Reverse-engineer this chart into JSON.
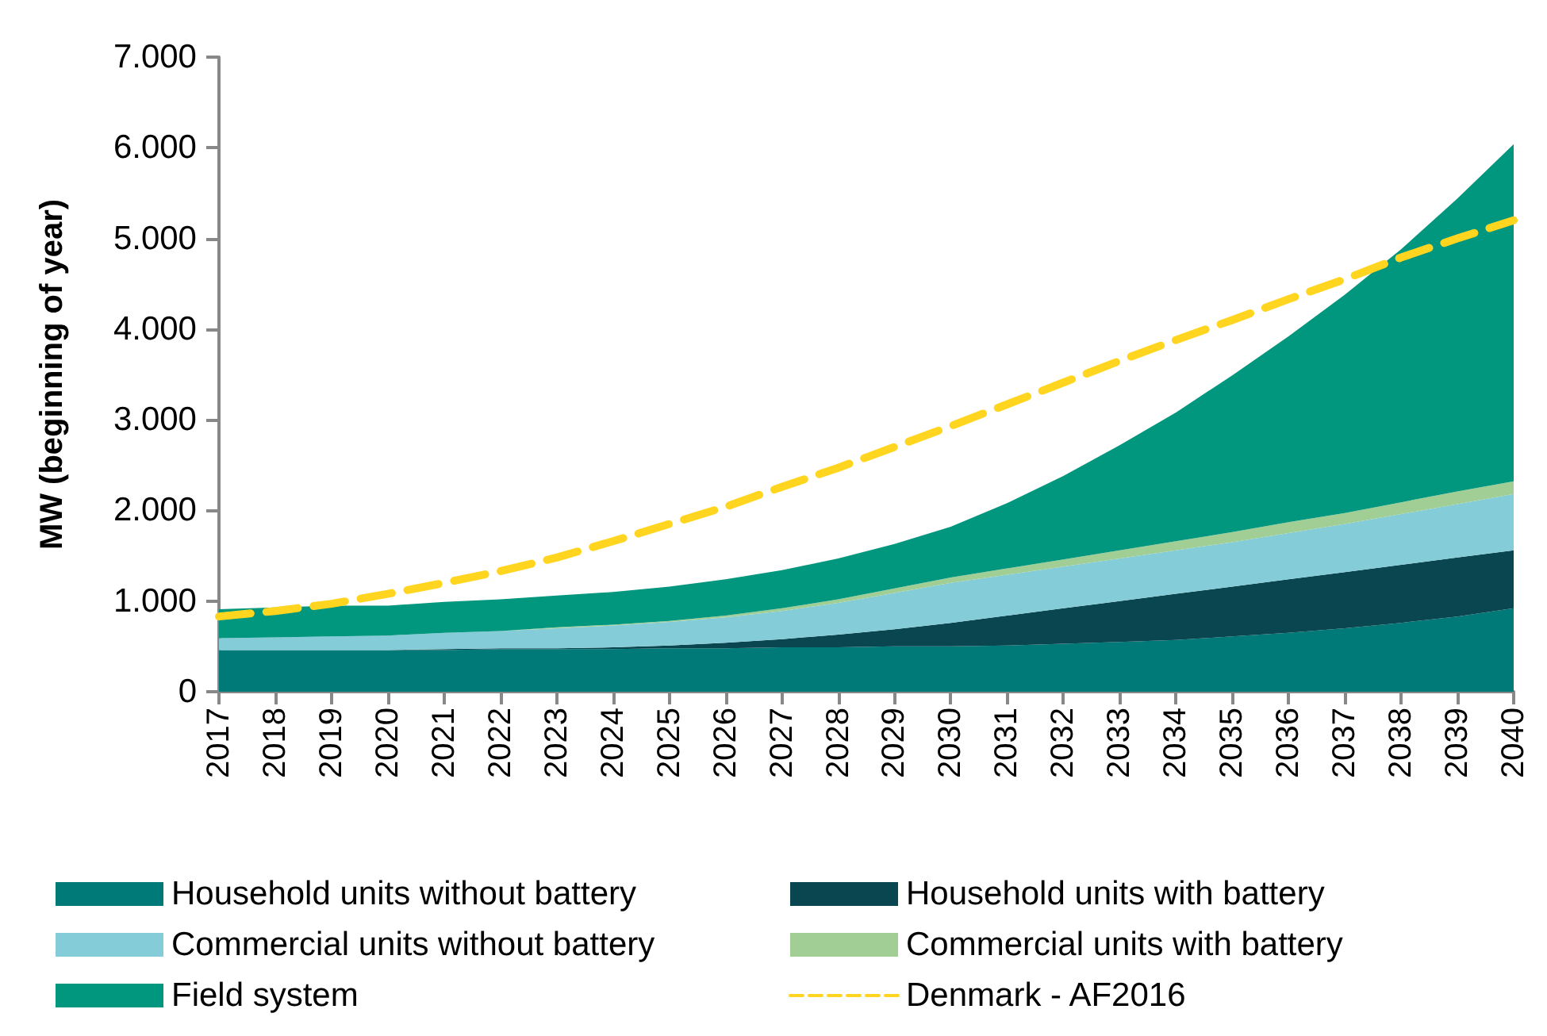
{
  "chart_data": {
    "type": "area",
    "stacked": true,
    "ylabel": "MW (beginning of year)",
    "categories": [
      "2017",
      "2018",
      "2019",
      "2020",
      "2021",
      "2022",
      "2023",
      "2024",
      "2025",
      "2026",
      "2027",
      "2028",
      "2029",
      "2030",
      "2031",
      "2032",
      "2033",
      "2034",
      "2035",
      "2036",
      "2037",
      "2038",
      "2039",
      "2040"
    ],
    "ylim": [
      0,
      7000
    ],
    "yticks": [
      0,
      {
        "value": 1000,
        "label": "1.000"
      },
      {
        "value": 2000,
        "label": "2.000"
      },
      {
        "value": 3000,
        "label": "3.000"
      },
      {
        "value": 4000,
        "label": "4.000"
      },
      {
        "value": 5000,
        "label": "5.000"
      },
      {
        "value": 6000,
        "label": "6.000"
      },
      {
        "value": 7000,
        "label": "7.000"
      }
    ],
    "grid": false,
    "legend": "bottom",
    "marker": "none",
    "series": [
      {
        "name": "Household units without battery",
        "color": "#007a78",
        "values": [
          460,
          460,
          460,
          460,
          460,
          470,
          470,
          470,
          480,
          480,
          490,
          490,
          500,
          500,
          510,
          530,
          550,
          570,
          610,
          650,
          700,
          760,
          830,
          920
        ]
      },
      {
        "name": "Household units with battery",
        "color": "#0a4650",
        "values": [
          0,
          0,
          0,
          0,
          10,
          10,
          10,
          20,
          30,
          60,
          90,
          140,
          190,
          260,
          330,
          390,
          450,
          510,
          550,
          590,
          620,
          640,
          650,
          640
        ]
      },
      {
        "name": "Commercial units without battery",
        "color": "#84ccd8",
        "values": [
          130,
          140,
          150,
          160,
          180,
          190,
          220,
          240,
          260,
          280,
          310,
          350,
          400,
          440,
          450,
          460,
          470,
          480,
          490,
          510,
          530,
          560,
          590,
          620
        ]
      },
      {
        "name": "Commercial units with battery",
        "color": "#a0ce94",
        "values": [
          0,
          0,
          0,
          0,
          0,
          0,
          10,
          10,
          10,
          20,
          30,
          40,
          50,
          60,
          70,
          80,
          90,
          100,
          110,
          120,
          120,
          130,
          140,
          140
        ]
      },
      {
        "name": "Field system",
        "color": "#00977e",
        "values": [
          320,
          330,
          340,
          330,
          340,
          350,
          350,
          360,
          380,
          400,
          420,
          450,
          490,
          560,
          720,
          920,
          1160,
          1420,
          1730,
          2050,
          2410,
          2790,
          3230,
          3720
        ]
      },
      {
        "name": "Denmark - AF2016",
        "type": "line",
        "line_style": "dashed",
        "color": "#ffd520",
        "values": [
          830,
          890,
          970,
          1080,
          1200,
          1330,
          1480,
          1660,
          1850,
          2040,
          2260,
          2470,
          2700,
          2930,
          3170,
          3410,
          3650,
          3880,
          4100,
          4330,
          4550,
          4790,
          5000,
          5200
        ]
      }
    ]
  }
}
